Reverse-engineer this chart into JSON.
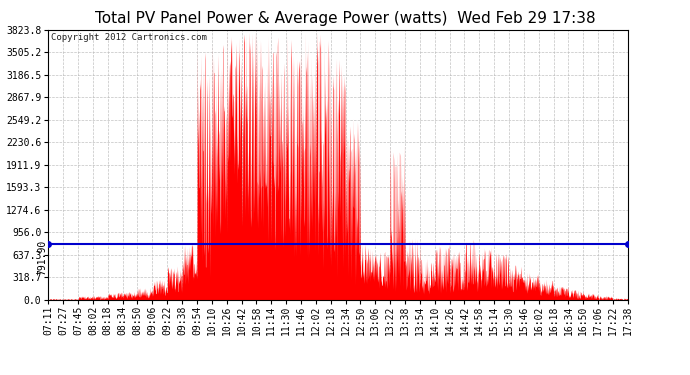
{
  "title": "Total PV Panel Power & Average Power (watts)  Wed Feb 29 17:38",
  "copyright": "Copyright 2012 Cartronics.com",
  "avg_power": 791.9,
  "y_max": 3823.8,
  "y_ticks": [
    0.0,
    318.7,
    637.3,
    956.0,
    1274.6,
    1593.3,
    1911.9,
    2230.6,
    2549.2,
    2867.9,
    3186.5,
    3505.2,
    3823.8
  ],
  "y_tick_labels": [
    "0.0",
    "318.7",
    "637.3",
    "956.0",
    "1274.6",
    "1593.3",
    "1911.9",
    "2230.6",
    "2549.2",
    "2867.9",
    "3186.5",
    "3505.2",
    "3823.8"
  ],
  "avg_label": "791.90",
  "area_color": "#ff0000",
  "avg_line_color": "#0000cc",
  "bg_color": "#ffffff",
  "plot_bg_color": "#ffffff",
  "grid_color": "#bbbbbb",
  "title_fontsize": 11,
  "copyright_fontsize": 6.5,
  "tick_fontsize": 7,
  "avg_fontsize": 7,
  "x_tick_labels": [
    "07:11",
    "07:27",
    "07:45",
    "08:02",
    "08:18",
    "08:34",
    "08:50",
    "09:06",
    "09:22",
    "09:38",
    "09:54",
    "10:10",
    "10:26",
    "10:42",
    "10:58",
    "11:14",
    "11:30",
    "11:46",
    "12:02",
    "12:18",
    "12:34",
    "12:50",
    "13:06",
    "13:22",
    "13:38",
    "13:54",
    "14:10",
    "14:26",
    "14:42",
    "14:58",
    "15:14",
    "15:30",
    "15:46",
    "16:02",
    "16:18",
    "16:34",
    "16:50",
    "17:06",
    "17:22",
    "17:38"
  ],
  "seed": 12345,
  "n_points": 2000
}
